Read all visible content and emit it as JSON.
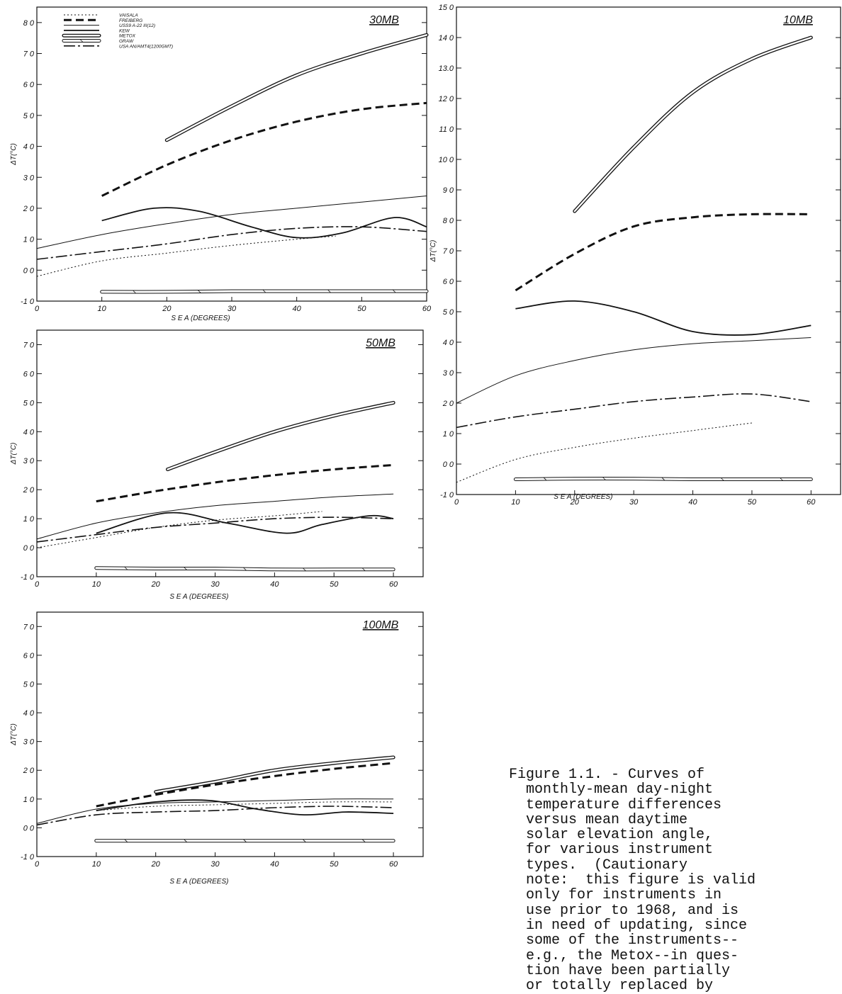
{
  "chart_data": [
    {
      "type": "line",
      "panel_label": "30MB",
      "xlabel": "S E A (DEGREES)",
      "ylabel": "ΔT(°C)",
      "xlim": [
        0,
        60
      ],
      "ylim": [
        -1.0,
        8.5
      ],
      "x_ticks": [
        "0",
        "10",
        "20",
        "30",
        "40",
        "50",
        "60"
      ],
      "y_ticks": [
        {
          "v": -1.0,
          "t": "-1 0"
        },
        {
          "v": 0.0,
          "t": "0 0"
        },
        {
          "v": 1.0,
          "t": "1 0"
        },
        {
          "v": 2.0,
          "t": "2 0"
        },
        {
          "v": 3.0,
          "t": "3 0"
        },
        {
          "v": 4.0,
          "t": "4 0"
        },
        {
          "v": 5.0,
          "t": "5 0"
        },
        {
          "v": 6.0,
          "t": "6 0"
        },
        {
          "v": 7.0,
          "t": "7 0"
        },
        {
          "v": 8.0,
          "t": "8 0"
        }
      ],
      "legend": [
        {
          "name": "VAISALA",
          "style": "vaisala"
        },
        {
          "name": "FREIBERG",
          "style": "freiberg"
        },
        {
          "name": "USS9 A-22 III(12)",
          "style": "uss"
        },
        {
          "name": "KEW",
          "style": "kew"
        },
        {
          "name": "METOX",
          "style": "metox"
        },
        {
          "name": "GRAW",
          "style": "graw"
        },
        {
          "name": "USA AN/AMT4(1200GMT)",
          "style": "usa"
        }
      ],
      "series": [
        {
          "style": "metox",
          "x": [
            20,
            30,
            40,
            50,
            60
          ],
          "y": [
            4.2,
            5.3,
            6.3,
            7.0,
            7.6
          ]
        },
        {
          "style": "freiberg",
          "x": [
            10,
            20,
            30,
            40,
            50,
            60
          ],
          "y": [
            2.4,
            3.4,
            4.2,
            4.8,
            5.2,
            5.4
          ]
        },
        {
          "style": "uss",
          "x": [
            0,
            10,
            20,
            30,
            40,
            50,
            60
          ],
          "y": [
            0.7,
            1.15,
            1.5,
            1.8,
            2.0,
            2.2,
            2.4
          ]
        },
        {
          "style": "kew",
          "x": [
            10,
            18,
            25,
            33,
            40,
            47,
            55,
            60
          ],
          "y": [
            1.6,
            2.0,
            1.9,
            1.4,
            1.05,
            1.2,
            1.7,
            1.4
          ]
        },
        {
          "style": "usa",
          "x": [
            0,
            10,
            20,
            30,
            40,
            50,
            60
          ],
          "y": [
            0.35,
            0.6,
            0.85,
            1.15,
            1.35,
            1.4,
            1.25
          ]
        },
        {
          "style": "vaisala",
          "x": [
            0,
            10,
            20,
            30,
            40,
            46
          ],
          "y": [
            -0.2,
            0.3,
            0.55,
            0.8,
            1.0,
            1.1
          ]
        },
        {
          "style": "graw",
          "x": [
            10,
            20,
            30,
            40,
            50,
            60
          ],
          "y": [
            -0.7,
            -0.7,
            -0.68,
            -0.68,
            -0.68,
            -0.68
          ]
        }
      ]
    },
    {
      "type": "line",
      "panel_label": "10MB",
      "xlabel": "S E A (DEGREES)",
      "ylabel": "ΔT(°C)",
      "xlim": [
        0,
        65
      ],
      "ylim": [
        -1.0,
        15.0
      ],
      "x_ticks": [
        "0",
        "10",
        "20",
        "30",
        "40",
        "50",
        "60"
      ],
      "y_ticks": [
        {
          "v": -1.0,
          "t": "-1 0"
        },
        {
          "v": 0.0,
          "t": "0 0"
        },
        {
          "v": 1.0,
          "t": "1 0"
        },
        {
          "v": 2.0,
          "t": "2 0"
        },
        {
          "v": 3.0,
          "t": "3 0"
        },
        {
          "v": 4.0,
          "t": "4 0"
        },
        {
          "v": 5.0,
          "t": "5 0"
        },
        {
          "v": 6.0,
          "t": "6 0"
        },
        {
          "v": 7.0,
          "t": "7 0"
        },
        {
          "v": 8.0,
          "t": "8 0"
        },
        {
          "v": 9.0,
          "t": "9 0"
        },
        {
          "v": 10.0,
          "t": "10 0"
        },
        {
          "v": 11.0,
          "t": "11 0"
        },
        {
          "v": 12.0,
          "t": "12 0"
        },
        {
          "v": 13.0,
          "t": "13.0"
        },
        {
          "v": 14.0,
          "t": "14 0"
        },
        {
          "v": 15.0,
          "t": "15 0"
        }
      ],
      "series": [
        {
          "style": "metox",
          "x": [
            20,
            30,
            40,
            50,
            60
          ],
          "y": [
            8.3,
            10.4,
            12.2,
            13.3,
            14.0
          ]
        },
        {
          "style": "freiberg",
          "x": [
            10,
            20,
            30,
            40,
            50,
            60
          ],
          "y": [
            5.7,
            6.9,
            7.8,
            8.1,
            8.2,
            8.2
          ]
        },
        {
          "style": "kew",
          "x": [
            10,
            20,
            30,
            40,
            50,
            60
          ],
          "y": [
            5.1,
            5.35,
            5.0,
            4.35,
            4.25,
            4.55
          ]
        },
        {
          "style": "uss",
          "x": [
            0,
            10,
            20,
            30,
            40,
            50,
            60
          ],
          "y": [
            2.0,
            2.9,
            3.4,
            3.75,
            3.95,
            4.05,
            4.15
          ]
        },
        {
          "style": "usa",
          "x": [
            0,
            10,
            20,
            30,
            40,
            50,
            60
          ],
          "y": [
            1.2,
            1.55,
            1.8,
            2.05,
            2.2,
            2.3,
            2.05
          ]
        },
        {
          "style": "vaisala",
          "x": [
            0,
            10,
            20,
            30,
            40,
            50
          ],
          "y": [
            -0.6,
            0.15,
            0.55,
            0.85,
            1.1,
            1.35
          ]
        },
        {
          "style": "graw",
          "x": [
            10,
            20,
            30,
            40,
            50,
            60
          ],
          "y": [
            -0.5,
            -0.48,
            -0.48,
            -0.5,
            -0.5,
            -0.5
          ]
        }
      ]
    },
    {
      "type": "line",
      "panel_label": "50MB",
      "xlabel": "S E A (DEGREES)",
      "ylabel": "ΔT(°C)",
      "xlim": [
        0,
        65
      ],
      "ylim": [
        -1.0,
        7.5
      ],
      "x_ticks": [
        "0",
        "10",
        "20",
        "30",
        "40",
        "50",
        "60"
      ],
      "y_ticks": [
        {
          "v": -1.0,
          "t": "-1 0"
        },
        {
          "v": 0.0,
          "t": "0 0"
        },
        {
          "v": 1.0,
          "t": "1 0"
        },
        {
          "v": 2.0,
          "t": "2 0"
        },
        {
          "v": 3.0,
          "t": "3 0"
        },
        {
          "v": 4.0,
          "t": "4 0"
        },
        {
          "v": 5.0,
          "t": "5 0"
        },
        {
          "v": 6.0,
          "t": "6 0"
        },
        {
          "v": 7.0,
          "t": "7 0"
        }
      ],
      "series": [
        {
          "style": "metox",
          "x": [
            22,
            30,
            40,
            50,
            60
          ],
          "y": [
            2.7,
            3.3,
            4.0,
            4.55,
            5.0
          ]
        },
        {
          "style": "freiberg",
          "x": [
            10,
            20,
            30,
            40,
            50,
            60
          ],
          "y": [
            1.6,
            1.95,
            2.25,
            2.5,
            2.7,
            2.85
          ]
        },
        {
          "style": "uss",
          "x": [
            0,
            10,
            20,
            30,
            40,
            50,
            60
          ],
          "y": [
            0.3,
            0.85,
            1.2,
            1.45,
            1.6,
            1.75,
            1.85
          ]
        },
        {
          "style": "kew",
          "x": [
            10,
            22,
            32,
            42,
            48,
            56,
            60
          ],
          "y": [
            0.5,
            1.2,
            0.85,
            0.5,
            0.8,
            1.1,
            1.0
          ]
        },
        {
          "style": "usa",
          "x": [
            0,
            10,
            20,
            30,
            40,
            50,
            60
          ],
          "y": [
            0.2,
            0.45,
            0.7,
            0.85,
            1.0,
            1.05,
            1.0
          ]
        },
        {
          "style": "vaisala",
          "x": [
            0,
            10,
            20,
            30,
            40,
            48
          ],
          "y": [
            0.0,
            0.35,
            0.7,
            0.95,
            1.1,
            1.25
          ]
        },
        {
          "style": "graw",
          "x": [
            10,
            20,
            30,
            40,
            50,
            60
          ],
          "y": [
            -0.7,
            -0.72,
            -0.72,
            -0.75,
            -0.75,
            -0.75
          ]
        }
      ]
    },
    {
      "type": "line",
      "panel_label": "100MB",
      "xlabel": "S E A (DEGREES)",
      "ylabel": "ΔT(°C)",
      "xlim": [
        0,
        65
      ],
      "ylim": [
        -1.0,
        7.5
      ],
      "x_ticks": [
        "0",
        "10",
        "20",
        "30",
        "40",
        "50",
        "60"
      ],
      "y_ticks": [
        {
          "v": -1.0,
          "t": "-1 0"
        },
        {
          "v": 0.0,
          "t": "0 0"
        },
        {
          "v": 1.0,
          "t": "1 0"
        },
        {
          "v": 2.0,
          "t": "2 0"
        },
        {
          "v": 3.0,
          "t": "3 0"
        },
        {
          "v": 4.0,
          "t": "4 0"
        },
        {
          "v": 5.0,
          "t": "5 0"
        },
        {
          "v": 6.0,
          "t": "6 0"
        },
        {
          "v": 7.0,
          "t": "7 0"
        }
      ],
      "series": [
        {
          "style": "metox",
          "x": [
            20,
            30,
            40,
            50,
            60
          ],
          "y": [
            1.25,
            1.6,
            2.0,
            2.25,
            2.45
          ]
        },
        {
          "style": "freiberg",
          "x": [
            10,
            20,
            30,
            40,
            50,
            60
          ],
          "y": [
            0.75,
            1.15,
            1.5,
            1.8,
            2.05,
            2.25
          ]
        },
        {
          "style": "uss",
          "x": [
            0,
            10,
            20,
            30,
            40,
            50,
            60
          ],
          "y": [
            0.15,
            0.65,
            0.85,
            0.9,
            0.95,
            1.0,
            1.0
          ]
        },
        {
          "style": "kew",
          "x": [
            10,
            20,
            29,
            37,
            45,
            52,
            60
          ],
          "y": [
            0.6,
            0.9,
            0.95,
            0.65,
            0.45,
            0.55,
            0.5
          ]
        },
        {
          "style": "usa",
          "x": [
            0,
            10,
            20,
            30,
            40,
            50,
            60
          ],
          "y": [
            0.1,
            0.45,
            0.55,
            0.6,
            0.7,
            0.75,
            0.7
          ]
        },
        {
          "style": "vaisala",
          "x": [
            10,
            20,
            30,
            40,
            50,
            60
          ],
          "y": [
            0.6,
            0.75,
            0.8,
            0.85,
            0.9,
            0.9
          ]
        },
        {
          "style": "graw",
          "x": [
            10,
            20,
            30,
            40,
            50,
            60
          ],
          "y": [
            -0.45,
            -0.45,
            -0.45,
            -0.45,
            -0.45,
            -0.45
          ]
        }
      ]
    }
  ],
  "caption": "Figure 1.1. - Curves of\n  monthly-mean day-night\n  temperature differences\n  versus mean daytime\n  solar elevation angle,\n  for various instrument\n  types.  (Cautionary\n  note:  this figure is valid\n  only for instruments in\n  use prior to 1968, and is\n  in need of updating, since\n  some of the instruments--\n  e.g., the Metox--in ques-\n  tion have been partially\n  or totally replaced by"
}
